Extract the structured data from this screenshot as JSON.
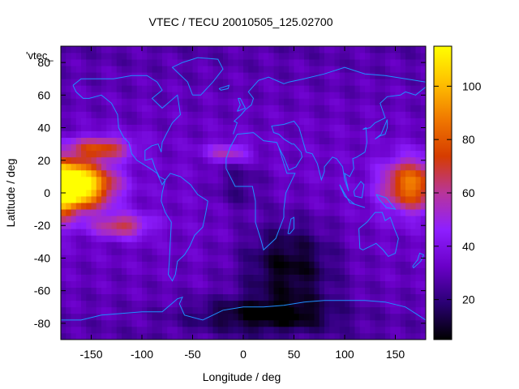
{
  "chart_data": {
    "type": "heatmap",
    "title": "VTEC / TECU 20010505_125.02700",
    "xlabel": "Longitude / deg",
    "ylabel": "Latitude / deg",
    "key_label": "'vtec_",
    "xlim": [
      -180,
      180
    ],
    "ylim": [
      -90,
      90
    ],
    "x_ticks": [
      -150,
      -100,
      -50,
      0,
      50,
      100,
      150
    ],
    "y_ticks": [
      -80,
      -60,
      -40,
      -20,
      0,
      20,
      40,
      60,
      80
    ],
    "colorbar_range": [
      5,
      115
    ],
    "colorbar_ticks": [
      20,
      40,
      60,
      80,
      100
    ],
    "colorscale": [
      "#000000",
      "#2a0074",
      "#6a00c8",
      "#8e1fff",
      "#b8359a",
      "#d63c00",
      "#f07800",
      "#ffc000",
      "#ffff00"
    ],
    "map_overlay_color": "#1e90ff",
    "grid_resolution_deg": {
      "lon": 5,
      "lat": 4
    },
    "value_regions_approx": [
      {
        "description_lon": [
          -180,
          -120
        ],
        "description_lat": [
          -20,
          30
        ],
        "peak_vtec": 110
      },
      {
        "description_lon": [
          120,
          180
        ],
        "description_lat": [
          -25,
          30
        ],
        "peak_vtec": 85
      },
      {
        "description_lon": [
          -50,
          120
        ],
        "description_lat": [
          -90,
          -10
        ],
        "min_vtec": 5
      }
    ]
  }
}
